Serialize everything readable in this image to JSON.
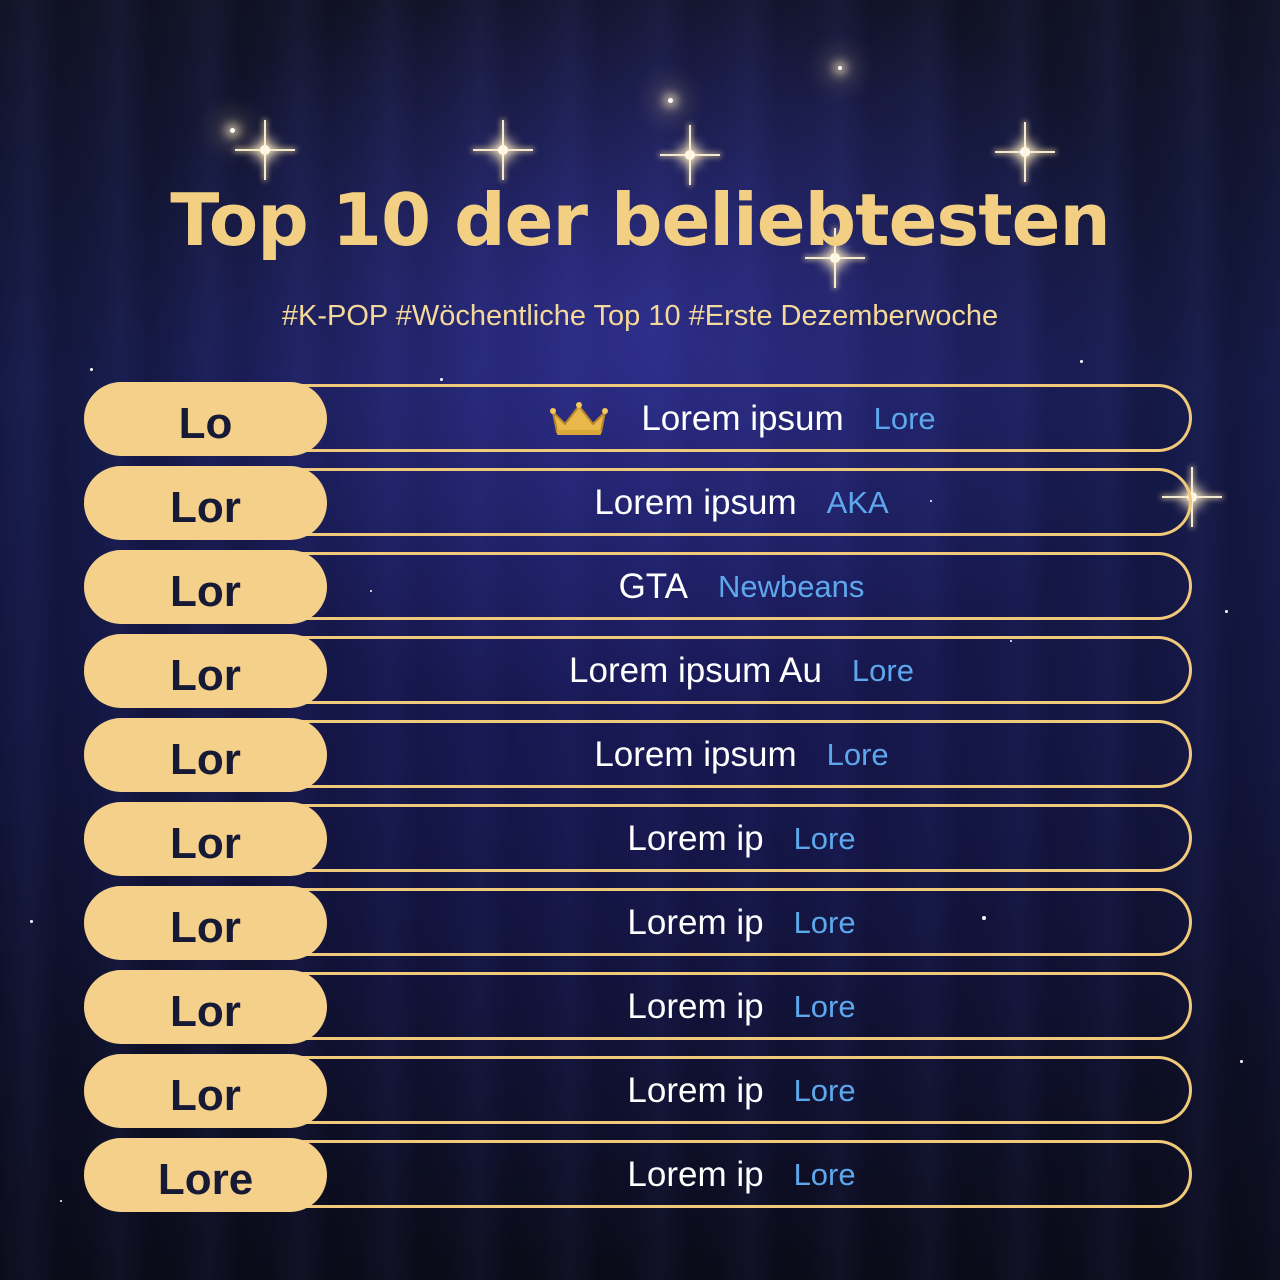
{
  "header": {
    "title": "Top 10 der beliebtesten",
    "subtitle": "#K-POP #Wöchentliche Top 10 #Erste Dezemberwoche"
  },
  "colors": {
    "gold": "#f4d08a",
    "title_gold": "#f2cf83",
    "artist_blue": "#5da7ec",
    "background": "#151a46"
  },
  "ranking": [
    {
      "rank": "Lo",
      "song": "Lorem ipsum",
      "artist": "Lore",
      "icon": "crown-icon"
    },
    {
      "rank": "Lor",
      "song": "Lorem ipsum",
      "artist": "AKA"
    },
    {
      "rank": "Lor",
      "song": "GTA",
      "artist": "Newbeans"
    },
    {
      "rank": "Lor",
      "song": "Lorem ipsum Au",
      "artist": "Lore"
    },
    {
      "rank": "Lor",
      "song": "Lorem ipsum",
      "artist": "Lore"
    },
    {
      "rank": "Lor",
      "song": "Lorem ip",
      "artist": "Lore"
    },
    {
      "rank": "Lor",
      "song": "Lorem ip",
      "artist": "Lore"
    },
    {
      "rank": "Lor",
      "song": "Lorem ip",
      "artist": "Lore"
    },
    {
      "rank": "Lor",
      "song": "Lorem ip",
      "artist": "Lore"
    },
    {
      "rank": "Lore",
      "song": "Lorem ip",
      "artist": "Lore"
    }
  ]
}
